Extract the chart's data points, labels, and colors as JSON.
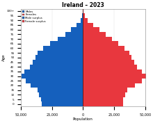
{
  "title": "Ireland – 2023",
  "xlabel": "Population",
  "ylabel": "Age",
  "age_groups": [
    "0",
    "5",
    "10",
    "15",
    "20",
    "25",
    "30",
    "35",
    "40",
    "45",
    "50",
    "55",
    "60",
    "65",
    "70",
    "75",
    "80",
    "85",
    "90",
    "95",
    "100+"
  ],
  "males": [
    33500,
    34000,
    35500,
    36500,
    42000,
    46000,
    49500,
    47000,
    43000,
    40500,
    38500,
    36500,
    32000,
    26500,
    20500,
    14500,
    9500,
    5200,
    1900,
    650,
    180
  ],
  "females": [
    32000,
    32500,
    34000,
    35500,
    42000,
    47500,
    51000,
    47500,
    43500,
    41000,
    39000,
    37500,
    33500,
    28500,
    23500,
    18000,
    13500,
    8000,
    3500,
    1500,
    600
  ],
  "male_color": "#1560bd",
  "female_color": "#e8373e",
  "xlim": 50000,
  "background_color": "#ffffff",
  "legend_labels": [
    "Males",
    "Females",
    "Male surplus",
    "Female surplus"
  ],
  "legend_colors": [
    "#1560bd",
    "#e8373e",
    "#1560bd",
    "#e8373e"
  ]
}
